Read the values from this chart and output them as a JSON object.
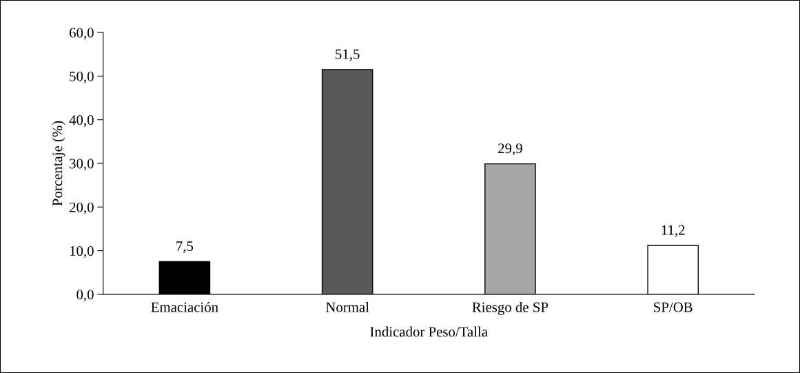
{
  "chart_data": {
    "type": "bar",
    "xlabel": "Indicador Peso/Talla",
    "ylabel": "Porcentaje (%)",
    "categories": [
      "Emaciación",
      "Normal",
      "Riesgo de SP",
      "SP/OB"
    ],
    "values": [
      7.5,
      51.5,
      29.9,
      11.2
    ],
    "colors": [
      "#000000",
      "#595959",
      "#a6a6a6",
      "#ffffff"
    ],
    "value_labels": [
      "7,5",
      "51,5",
      "29,9",
      "11,2"
    ],
    "ylim": [
      0,
      60
    ],
    "yticks": [
      {
        "value": 0,
        "label": "0,0"
      },
      {
        "value": 10,
        "label": "10,0"
      },
      {
        "value": 20,
        "label": "20,0"
      },
      {
        "value": 30,
        "label": "30,0"
      },
      {
        "value": 40,
        "label": "40,0"
      },
      {
        "value": 50,
        "label": "50,0"
      },
      {
        "value": 60,
        "label": "60,0"
      }
    ],
    "grid": false,
    "legend": false
  }
}
